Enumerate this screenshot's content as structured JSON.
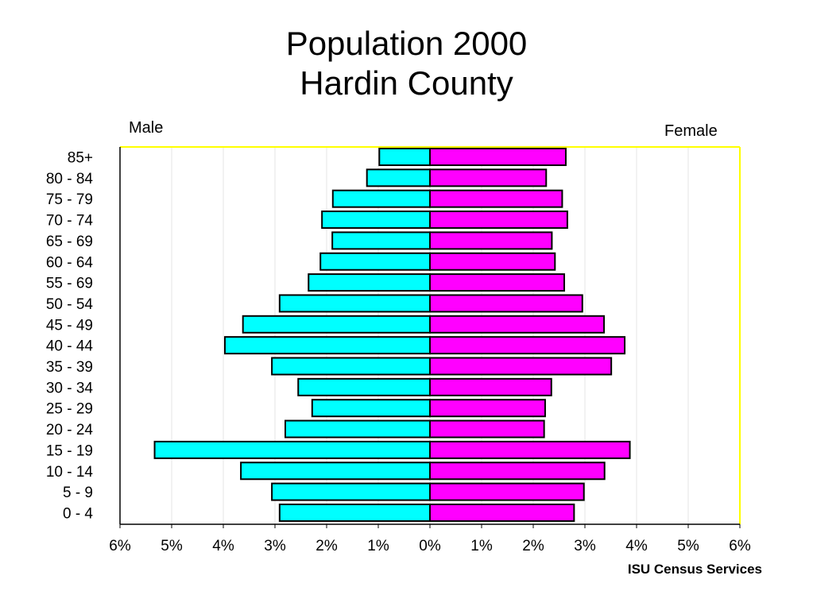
{
  "chart_data": {
    "type": "bar",
    "orientation": "horizontal-population-pyramid",
    "title_lines": [
      "Population 2000",
      "Hardin County"
    ],
    "left_label": "Male",
    "right_label": "Female",
    "source": "ISU Census Services",
    "categories": [
      "85+",
      "80 - 84",
      "75 - 79",
      "70 - 74",
      "65 - 69",
      "60 - 64",
      "55 - 69",
      "50 - 54",
      "45 - 49",
      "40 - 44",
      "35 - 39",
      "30 - 34",
      "25 - 29",
      "20 - 24",
      "15 - 19",
      "10 - 14",
      "5 - 9",
      "0 - 4"
    ],
    "series": [
      {
        "name": "Male",
        "color": "#00ffff",
        "values": [
          0.98,
          1.22,
          1.88,
          2.09,
          1.89,
          2.12,
          2.35,
          2.91,
          3.62,
          3.97,
          3.06,
          2.55,
          2.28,
          2.8,
          5.33,
          3.66,
          3.06,
          2.91
        ]
      },
      {
        "name": "Female",
        "color": "#ff00ff",
        "values": [
          2.63,
          2.25,
          2.56,
          2.66,
          2.36,
          2.42,
          2.6,
          2.95,
          3.37,
          3.77,
          3.51,
          2.35,
          2.23,
          2.21,
          3.87,
          3.38,
          2.98,
          2.79
        ]
      }
    ],
    "x_ticks": [
      "6%",
      "5%",
      "4%",
      "3%",
      "2%",
      "1%",
      "0%",
      "1%",
      "2%",
      "3%",
      "4%",
      "5%",
      "6%"
    ],
    "xlim": [
      -6,
      6
    ],
    "unit": "%",
    "frame_color": "#ffff00",
    "gridlines": "vertical-light"
  }
}
